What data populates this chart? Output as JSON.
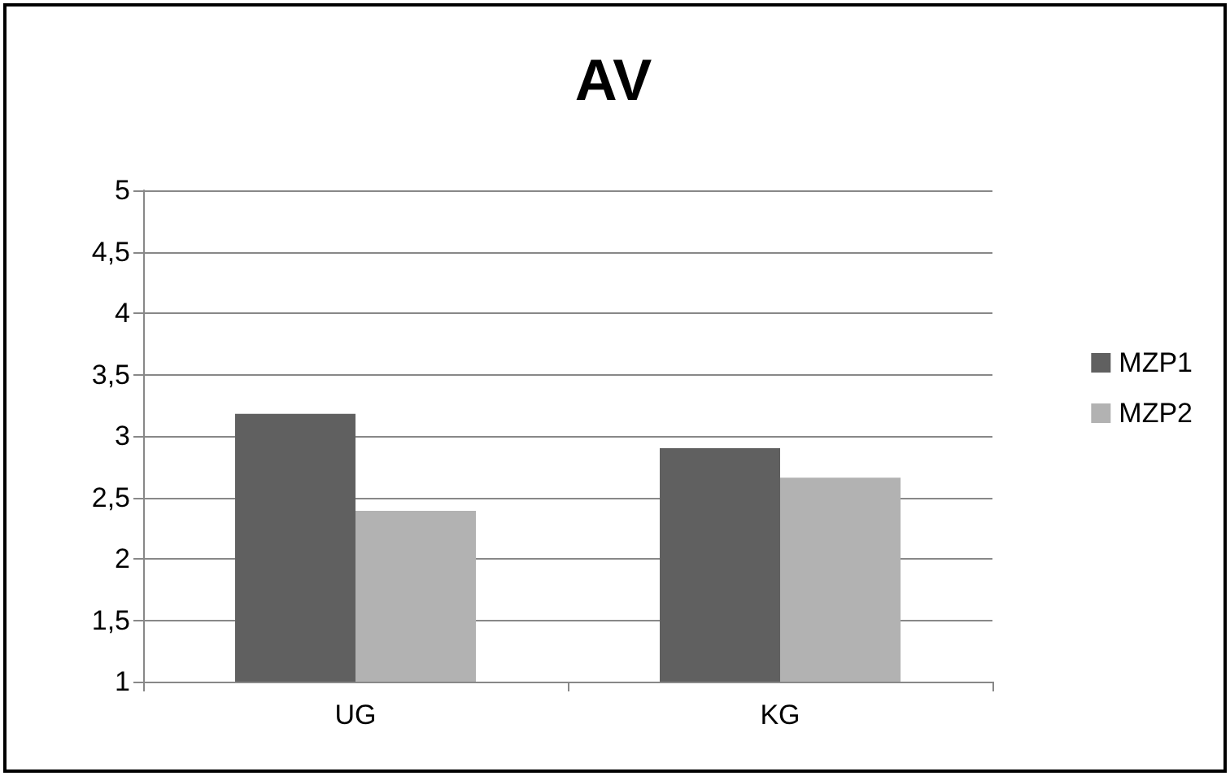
{
  "chart_data": {
    "type": "bar",
    "title": "AV",
    "categories": [
      "UG",
      "KG"
    ],
    "series": [
      {
        "name": "MZP1",
        "color": "#606060",
        "values": [
          3.18,
          2.9
        ]
      },
      {
        "name": "MZP2",
        "color": "#b2b2b2",
        "values": [
          2.39,
          2.66
        ]
      }
    ],
    "ylim": [
      1,
      5
    ],
    "yticks": [
      1,
      {
        "value": 1.5,
        "label": "1,5"
      },
      2,
      {
        "value": 2.5,
        "label": "2,5"
      },
      3,
      {
        "value": 3.5,
        "label": "3,5"
      },
      4,
      {
        "value": 4.5,
        "label": "4,5"
      },
      5
    ],
    "grid": "y",
    "legend": "right"
  }
}
